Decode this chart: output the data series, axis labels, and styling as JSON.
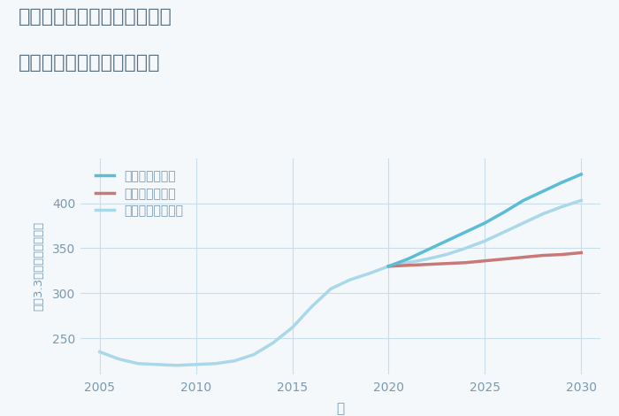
{
  "title_line1": "東京都西多摩郡瑞穂町武蔵の",
  "title_line2": "中古マンションの価格推移",
  "xlabel": "年",
  "ylabel": "坪（3.3㎡）単価（万円）",
  "legend_good": "グッドシナリオ",
  "legend_bad": "バッドシナリオ",
  "legend_normal": "ノーマルシナリオ",
  "color_good": "#5bbcd6",
  "color_bad": "#c97878",
  "color_normal": "#a8d8ea",
  "background_color": "#f4f8fb",
  "grid_color": "#c8dcea",
  "title_color": "#5a7080",
  "tick_color": "#7a9ab0",
  "xlim": [
    2004,
    2031
  ],
  "ylim": [
    210,
    450
  ],
  "xticks": [
    2005,
    2010,
    2015,
    2020,
    2025,
    2030
  ],
  "yticks": [
    250,
    300,
    350,
    400
  ],
  "history_years": [
    2005,
    2006,
    2007,
    2008,
    2009,
    2010,
    2011,
    2012,
    2013,
    2014,
    2015,
    2016,
    2017,
    2018,
    2019,
    2020
  ],
  "history_values": [
    235,
    227,
    222,
    221,
    220,
    221,
    222,
    225,
    232,
    245,
    262,
    285,
    305,
    315,
    322,
    330
  ],
  "future_years": [
    2020,
    2021,
    2022,
    2023,
    2024,
    2025,
    2026,
    2027,
    2028,
    2029,
    2030
  ],
  "good_values": [
    330,
    338,
    348,
    358,
    368,
    378,
    390,
    403,
    413,
    423,
    432
  ],
  "bad_values": [
    330,
    331,
    332,
    333,
    334,
    336,
    338,
    340,
    342,
    343,
    345
  ],
  "normal_values": [
    330,
    334,
    338,
    343,
    350,
    358,
    368,
    378,
    388,
    396,
    403
  ]
}
